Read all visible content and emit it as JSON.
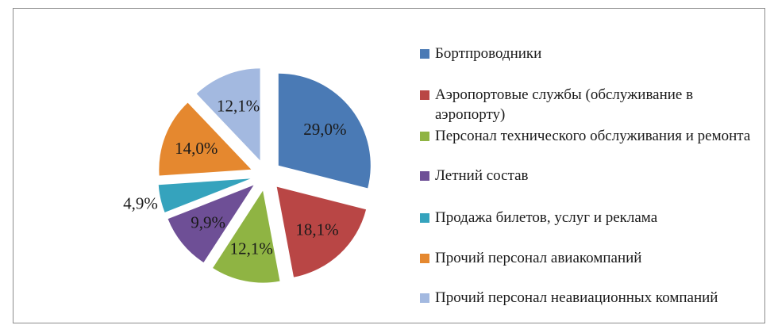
{
  "chart_data": {
    "type": "pie",
    "exploded": true,
    "start_angle_deg": 0,
    "direction": "clockwise",
    "legend_position": "right",
    "slices": [
      {
        "label": "Бортпроводники",
        "value": 29.0,
        "value_label": "29,0%",
        "color": "#4a7ab5"
      },
      {
        "label": "Аэропортовые службы (обслуживание в аэропорту)",
        "value": 18.1,
        "value_label": "18,1%",
        "color": "#b94645"
      },
      {
        "label": "Персонал технического обслуживания и ремонта",
        "value": 12.1,
        "value_label": "12,1%",
        "color": "#8fb443"
      },
      {
        "label": "Летний состав",
        "value": 9.9,
        "value_label": "9,9%",
        "color": "#6e4f96"
      },
      {
        "label": "Продажа билетов, услуг и реклама",
        "value": 4.9,
        "value_label": "4,9%",
        "color": "#35a3bd"
      },
      {
        "label": "Прочий персонал авиакомпаний",
        "value": 14.0,
        "value_label": "14,0%",
        "color": "#e5882f"
      },
      {
        "label": "Прочий персонал неавиационных компаний",
        "value": 12.1,
        "value_label": "12,1%",
        "color": "#a3b9e0"
      }
    ]
  }
}
